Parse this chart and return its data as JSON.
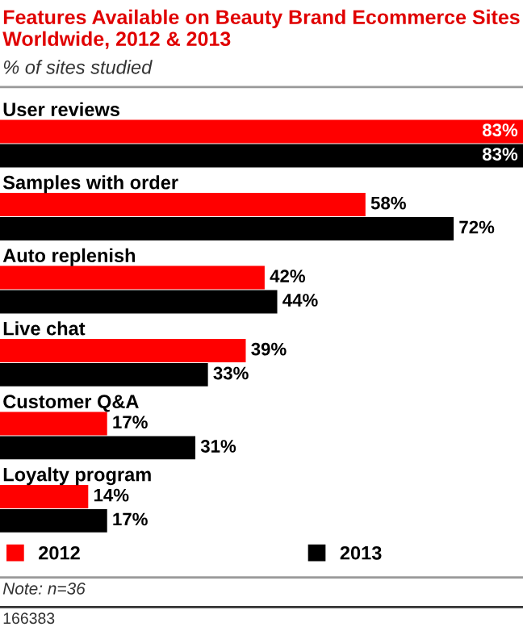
{
  "chart_data": {
    "type": "bar",
    "orientation": "horizontal",
    "title": "Features Available on Beauty Brand Ecommerce Sites Worldwide, 2012 & 2013",
    "subtitle": "% of sites studied",
    "categories": [
      "User reviews",
      "Samples with order",
      "Auto replenish",
      "Live chat",
      "Customer Q&A",
      "Loyalty program"
    ],
    "series": [
      {
        "name": "2012",
        "color": "#ff0000",
        "values": [
          83,
          58,
          42,
          39,
          17,
          14
        ],
        "value_labels": [
          "83%",
          "58%",
          "42%",
          "39%",
          "17%",
          "14%"
        ]
      },
      {
        "name": "2013",
        "color": "#000000",
        "values": [
          83,
          72,
          44,
          33,
          31,
          17
        ],
        "value_labels": [
          "83%",
          "72%",
          "44%",
          "33%",
          "31%",
          "17%"
        ]
      }
    ],
    "legend": "bottom",
    "annotations": [
      "Note: n=36",
      "166383"
    ]
  }
}
